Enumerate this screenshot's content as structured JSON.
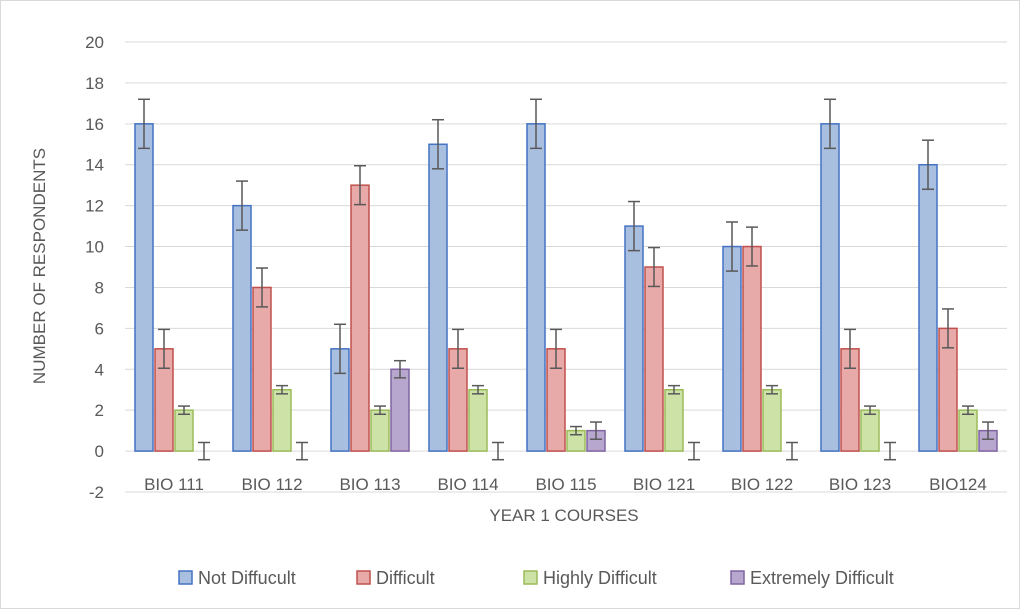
{
  "chart_data": {
    "type": "bar",
    "title": "",
    "xlabel": "YEAR 1 COURSES",
    "ylabel": "NUMBER OF RESPONDENTS",
    "categories": [
      "BIO 111",
      "BIO 112",
      "BIO 113",
      "BIO 114",
      "BIO 115",
      "BIO 121",
      "BIO 122",
      "BIO 123",
      "BIO124"
    ],
    "ylim": [
      -2,
      20
    ],
    "yticks": [
      -2,
      0,
      2,
      4,
      6,
      8,
      10,
      12,
      14,
      16,
      18,
      20
    ],
    "grid": true,
    "legend_position": "bottom",
    "error_bars": true,
    "series": [
      {
        "name": "Not Diffucult",
        "values": [
          16,
          12,
          5,
          15,
          16,
          11,
          10,
          16,
          14
        ],
        "error": [
          1.2,
          1.2,
          1.2,
          1.2,
          1.2,
          1.2,
          1.2,
          1.2,
          1.2
        ],
        "color": "#a9bfe0",
        "stroke": "#4472c4"
      },
      {
        "name": "Difficult",
        "values": [
          5,
          8,
          13,
          5,
          5,
          9,
          10,
          5,
          6
        ],
        "error": [
          0.95,
          0.95,
          0.95,
          0.95,
          0.95,
          0.95,
          0.95,
          0.95,
          0.95
        ],
        "color": "#e8a9a9",
        "stroke": "#c0504d"
      },
      {
        "name": "Highly Difficult",
        "values": [
          2,
          3,
          2,
          3,
          1,
          3,
          3,
          2,
          2
        ],
        "error": [
          0.2,
          0.2,
          0.2,
          0.2,
          0.2,
          0.2,
          0.2,
          0.2,
          0.2
        ],
        "color": "#cde2a6",
        "stroke": "#9bbb59"
      },
      {
        "name": "Extremely Difficult",
        "values": [
          0,
          0,
          4,
          0,
          1,
          0,
          0,
          0,
          1
        ],
        "error": [
          0.42,
          0.42,
          0.42,
          0.42,
          0.42,
          0.42,
          0.42,
          0.42,
          0.42
        ],
        "color": "#b7a7cf",
        "stroke": "#8064a2"
      }
    ]
  }
}
